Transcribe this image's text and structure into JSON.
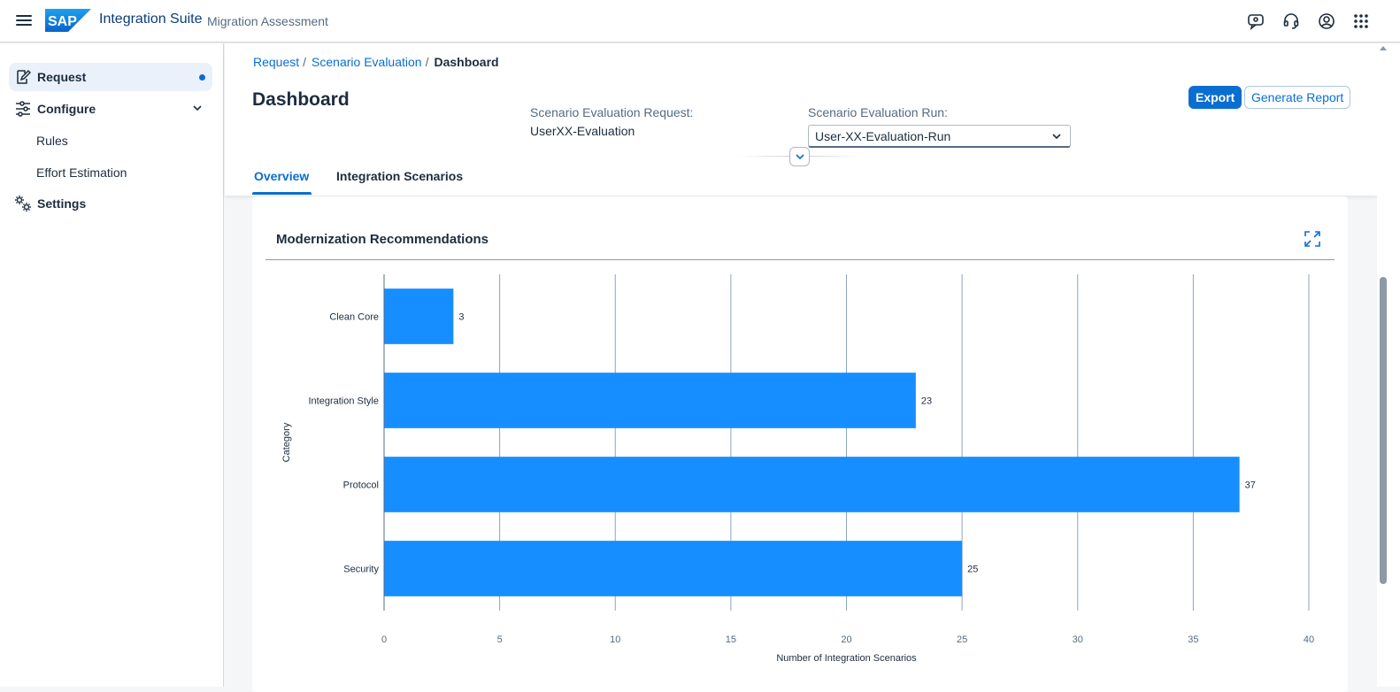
{
  "shell": {
    "product": "Integration Suite",
    "app": "Migration Assessment",
    "icons": [
      "menu-icon",
      "sap-logo",
      "feedback-icon",
      "support-icon",
      "user-icon",
      "product-switch-icon"
    ]
  },
  "sidenav": {
    "items": [
      {
        "label": "Request",
        "icon": "edit-icon"
      },
      {
        "label": "Configure",
        "icon": "filter-settings-icon"
      },
      {
        "label": "Rules"
      },
      {
        "label": "Effort Estimation"
      },
      {
        "label": "Settings",
        "icon": "gears-icon"
      }
    ]
  },
  "breadcrumb": {
    "items": [
      "Request",
      "Scenario Evaluation"
    ],
    "current": "Dashboard"
  },
  "header": {
    "title": "Dashboard",
    "request_label": "Scenario Evaluation Request:",
    "request_value": "UserXX-Evaluation",
    "run_label": "Scenario Evaluation Run:",
    "run_value": "User-XX-Evaluation-Run",
    "export_label": "Export",
    "report_label": "Generate Report"
  },
  "tabs": [
    {
      "label": "Overview",
      "active": true
    },
    {
      "label": "Integration Scenarios",
      "active": false
    }
  ],
  "card": {
    "title": "Modernization Recommendations"
  },
  "chart_data": {
    "type": "bar",
    "orientation": "horizontal",
    "categories": [
      "Clean Core",
      "Integration Style",
      "Protocol",
      "Security"
    ],
    "values": [
      3,
      23,
      37,
      25
    ],
    "xlabel": "Number of Integration Scenarios",
    "ylabel": "Category",
    "xlim": [
      0,
      40
    ],
    "xticks": [
      0,
      5,
      10,
      15,
      20,
      25,
      30,
      35,
      40
    ],
    "grid": true,
    "bar_color": "#168eff"
  },
  "colors": {
    "accent": "#0a6ed1",
    "bar": "#168eff",
    "shell_title": "#0a3d7a"
  }
}
